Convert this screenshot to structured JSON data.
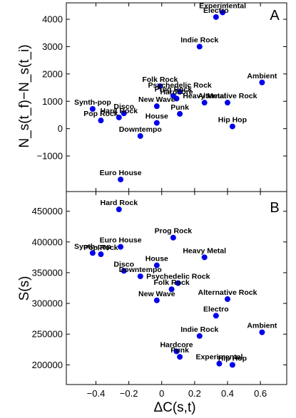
{
  "colors": {
    "point": "#0000ee",
    "axis": "#000000",
    "background": "#ffffff"
  },
  "chart_data": [
    {
      "type": "scatter",
      "panel": "A",
      "ylabel": "N_s(t_f)−N_s(t_i)",
      "xlim": [
        -0.58,
        0.76
      ],
      "ylim": [
        -2300,
        4600
      ],
      "yticks": [
        -1000,
        0,
        1000,
        2000,
        3000,
        4000
      ],
      "ytick_labels": [
        "−1000",
        "0",
        "1000",
        "2000",
        "3000",
        "4000"
      ],
      "points": [
        {
          "label": "Experimental",
          "x": 0.37,
          "y": 4250
        },
        {
          "label": "Electro",
          "x": 0.33,
          "y": 4080
        },
        {
          "label": "Indie Rock",
          "x": 0.23,
          "y": 3000
        },
        {
          "label": "Ambient",
          "x": 0.61,
          "y": 1690
        },
        {
          "label": "Folk Rock",
          "x": -0.01,
          "y": 1550
        },
        {
          "label": "Psychedelic Rock",
          "x": 0.11,
          "y": 1350
        },
        {
          "label": "Prog Rock",
          "x": 0.07,
          "y": 1200
        },
        {
          "label": "Hardcore",
          "x": 0.09,
          "y": 1100
        },
        {
          "label": "Heavy Metal",
          "x": 0.26,
          "y": 950
        },
        {
          "label": "Alternative Rock",
          "x": 0.4,
          "y": 950
        },
        {
          "label": "New Wave",
          "x": -0.03,
          "y": 820
        },
        {
          "label": "Synth-pop",
          "x": -0.42,
          "y": 720
        },
        {
          "label": "Disco",
          "x": -0.23,
          "y": 560
        },
        {
          "label": "Hard Rock",
          "x": -0.26,
          "y": 410
        },
        {
          "label": "Punk",
          "x": 0.11,
          "y": 540
        },
        {
          "label": "Pop Rock",
          "x": -0.37,
          "y": 300
        },
        {
          "label": "House",
          "x": -0.03,
          "y": 210
        },
        {
          "label": "Hip Hop",
          "x": 0.43,
          "y": 80
        },
        {
          "label": "Downtempo",
          "x": -0.13,
          "y": -270
        },
        {
          "label": "Euro House",
          "x": -0.25,
          "y": -1860
        }
      ]
    },
    {
      "type": "scatter",
      "panel": "B",
      "ylabel": "S(s)",
      "xlabel": "ΔC(s,t)",
      "xlim": [
        -0.58,
        0.76
      ],
      "ylim": [
        168000,
        482000
      ],
      "xticks": [
        -0.4,
        -0.2,
        0,
        0.2,
        0.4,
        0.6
      ],
      "xtick_labels": [
        "−0.4",
        "−0.2",
        "0",
        "0.2",
        "0.4",
        "0.6"
      ],
      "yticks": [
        200000,
        250000,
        300000,
        350000,
        400000,
        450000
      ],
      "ytick_labels": [
        "200000",
        "250000",
        "300000",
        "350000",
        "400000",
        "450000"
      ],
      "points": [
        {
          "label": "Hard Rock",
          "x": -0.26,
          "y": 453000
        },
        {
          "label": "Prog Rock",
          "x": 0.07,
          "y": 407000
        },
        {
          "label": "Euro House",
          "x": -0.25,
          "y": 392000
        },
        {
          "label": "Synth-pop",
          "x": -0.42,
          "y": 382000
        },
        {
          "label": "Pop Rock",
          "x": -0.37,
          "y": 380000
        },
        {
          "label": "House",
          "x": -0.03,
          "y": 362000
        },
        {
          "label": "Heavy Metal",
          "x": 0.26,
          "y": 375000
        },
        {
          "label": "Disco",
          "x": -0.23,
          "y": 353000
        },
        {
          "label": "Downtempo",
          "x": -0.13,
          "y": 344000
        },
        {
          "label": "Psychedelic Rock",
          "x": 0.1,
          "y": 333000
        },
        {
          "label": "Folk Rock",
          "x": 0.06,
          "y": 323000
        },
        {
          "label": "New Wave",
          "x": -0.03,
          "y": 305000
        },
        {
          "label": "Alternative Rock",
          "x": 0.4,
          "y": 307000
        },
        {
          "label": "Electro",
          "x": 0.33,
          "y": 280000
        },
        {
          "label": "Indie Rock",
          "x": 0.23,
          "y": 247000
        },
        {
          "label": "Ambient",
          "x": 0.61,
          "y": 253000
        },
        {
          "label": "Hardcore",
          "x": 0.09,
          "y": 222000
        },
        {
          "label": "Punk",
          "x": 0.11,
          "y": 213000
        },
        {
          "label": "Experimental",
          "x": 0.35,
          "y": 202000
        },
        {
          "label": "Hip Hop",
          "x": 0.43,
          "y": 200000
        }
      ]
    }
  ]
}
